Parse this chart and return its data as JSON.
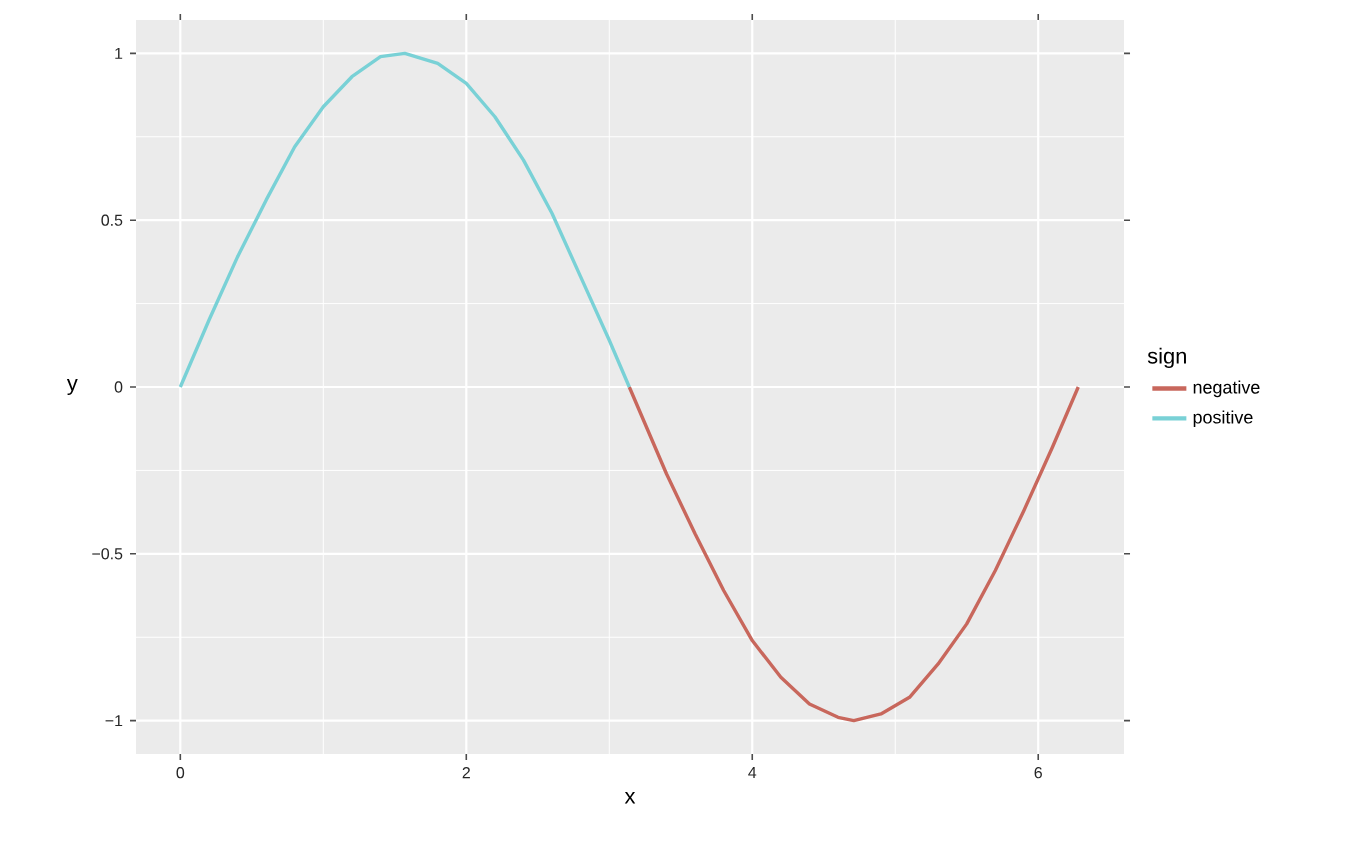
{
  "chart_data": {
    "type": "line",
    "xlabel": "x",
    "ylabel": "y",
    "legend_title": "sign",
    "xlim": [
      -0.31,
      6.6
    ],
    "ylim": [
      -1.1,
      1.1
    ],
    "xticks": [
      0,
      2,
      4,
      6
    ],
    "yticks": [
      {
        "value": -1,
        "label": "−1"
      },
      {
        "value": -0.5,
        "label": "−0.5"
      },
      0,
      0.5,
      1
    ],
    "grid": true,
    "legend": "right",
    "line_style": "solid",
    "marker": "none",
    "series": [
      {
        "name": "negative",
        "color": "#c8675c",
        "x": [
          3.14,
          3.4,
          3.6,
          3.8,
          4.0,
          4.2,
          4.4,
          4.6,
          4.71,
          4.9,
          5.1,
          5.3,
          5.5,
          5.7,
          5.9,
          6.1,
          6.28
        ],
        "values": [
          0,
          -0.26,
          -0.44,
          -0.61,
          -0.76,
          -0.87,
          -0.95,
          -0.99,
          -1.0,
          -0.98,
          -0.93,
          -0.83,
          -0.71,
          -0.55,
          -0.37,
          -0.18,
          0
        ]
      },
      {
        "name": "positive",
        "color": "#79d1d6",
        "x": [
          0,
          0.2,
          0.4,
          0.6,
          0.8,
          1.0,
          1.2,
          1.4,
          1.57,
          1.8,
          2.0,
          2.2,
          2.4,
          2.6,
          2.8,
          3.0,
          3.14
        ],
        "values": [
          0,
          0.2,
          0.39,
          0.56,
          0.72,
          0.84,
          0.93,
          0.99,
          1.0,
          0.97,
          0.91,
          0.81,
          0.68,
          0.52,
          0.33,
          0.14,
          0
        ]
      }
    ]
  }
}
